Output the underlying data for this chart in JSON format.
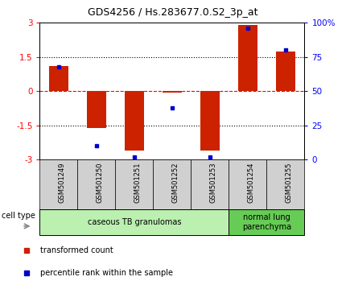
{
  "title": "GDS4256 / Hs.283677.0.S2_3p_at",
  "samples": [
    "GSM501249",
    "GSM501250",
    "GSM501251",
    "GSM501252",
    "GSM501253",
    "GSM501254",
    "GSM501255"
  ],
  "transformed_count": [
    1.1,
    -1.6,
    -2.6,
    -0.05,
    -2.6,
    2.9,
    1.75
  ],
  "percentile_rank": [
    68,
    10,
    2,
    38,
    2,
    96,
    80
  ],
  "bar_color": "#cc2200",
  "dot_color": "#0000cc",
  "ylim_left": [
    -3,
    3
  ],
  "ylim_right": [
    0,
    100
  ],
  "yticks_left": [
    -3,
    -1.5,
    0,
    1.5,
    3
  ],
  "yticks_right": [
    0,
    25,
    50,
    75,
    100
  ],
  "ytick_labels_left": [
    "-3",
    "-1.5",
    "0",
    "1.5",
    "3"
  ],
  "ytick_labels_right": [
    "0",
    "25",
    "50",
    "75",
    "100%"
  ],
  "hlines": [
    1.5,
    0,
    -1.5
  ],
  "hline_styles": [
    "dotted",
    "dashed",
    "dotted"
  ],
  "hline_colors": [
    "black",
    "red",
    "black"
  ],
  "groups": [
    {
      "label": "caseous TB granulomas",
      "indices": [
        0,
        1,
        2,
        3,
        4
      ],
      "color": "#bbf0b0"
    },
    {
      "label": "normal lung\nparenchyma",
      "indices": [
        5,
        6
      ],
      "color": "#66cc55"
    }
  ],
  "cell_type_label": "cell type",
  "legend_bar_label": "transformed count",
  "legend_dot_label": "percentile rank within the sample",
  "background_color": "#ffffff",
  "plot_bg_color": "#ffffff",
  "xtick_bg_color": "#d0d0d0",
  "bar_width": 0.5
}
